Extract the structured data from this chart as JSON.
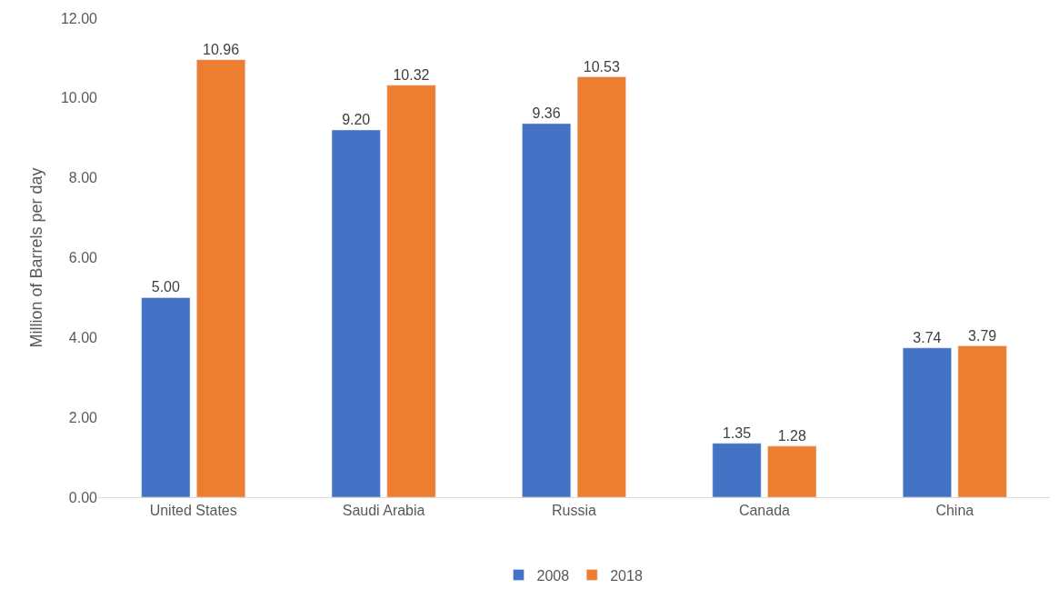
{
  "chart_data": {
    "type": "bar",
    "ylabel": "Million of Barrels per day",
    "categories": [
      "United States",
      "Saudi Arabia",
      "Russia",
      "Canada",
      "China"
    ],
    "series": [
      {
        "name": "2008",
        "color": "#4472c4",
        "values": [
          5.0,
          9.2,
          9.36,
          1.35,
          3.74
        ],
        "value_labels": [
          "5.00",
          "9.20",
          "9.36",
          "1.35",
          "3.74"
        ]
      },
      {
        "name": "2018",
        "color": "#ed7d31",
        "values": [
          10.96,
          10.32,
          10.53,
          1.28,
          3.79
        ],
        "value_labels": [
          "10.96",
          "10.32",
          "10.53",
          "1.28",
          "3.79"
        ]
      }
    ],
    "ylim": [
      0,
      12
    ],
    "yticks": [
      {
        "value": 0,
        "label": "0.00"
      },
      {
        "value": 2,
        "label": "2.00"
      },
      {
        "value": 4,
        "label": "4.00"
      },
      {
        "value": 6,
        "label": "6.00"
      },
      {
        "value": 8,
        "label": "8.00"
      },
      {
        "value": 10,
        "label": "10.00"
      },
      {
        "value": 12,
        "label": "12.00"
      }
    ],
    "grid": false,
    "legend": "bottom"
  }
}
